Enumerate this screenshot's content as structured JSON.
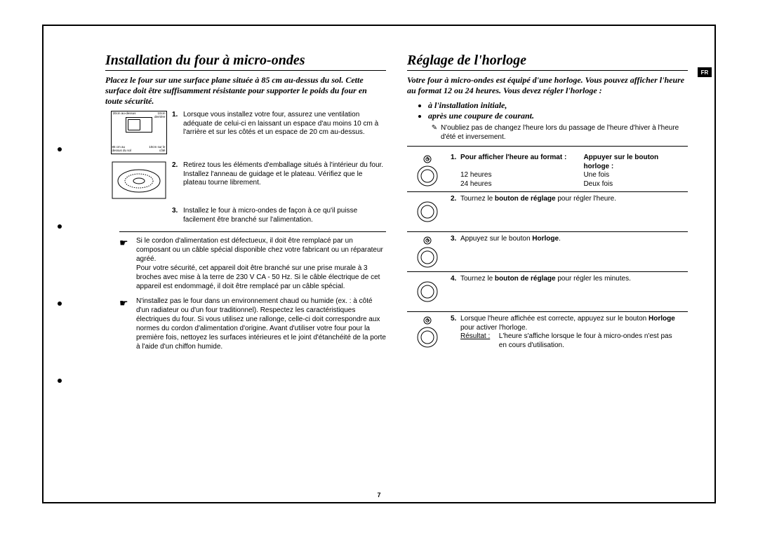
{
  "lang_tab": "FR",
  "page_number": "7",
  "left": {
    "title": "Installation du four à micro-ondes",
    "intro": "Placez le four sur une surface plane située à 85 cm au-dessus du sol. Cette surface doit être suffisamment résistante pour supporter le poids du four en toute sécurité.",
    "diagram_labels": {
      "top": "20cm au-dessus",
      "back": "10cm derrière",
      "height": "85 cm au dessus du sol",
      "side": "10cm sur le côté"
    },
    "steps": [
      {
        "n": "1.",
        "text": "Lorsque vous installez votre four, assurez une ventilation adéquate de celui-ci en laissant un espace d'au moins 10 cm à l'arrière et sur les côtés et un espace de 20 cm au-dessus."
      },
      {
        "n": "2.",
        "text": "Retirez tous les éléments d'emballage situés à l'intérieur du four. Installez l'anneau de guidage et le plateau. Vérifiez que le plateau tourne librement."
      },
      {
        "n": "3.",
        "text": "Installez le four à micro-ondes de façon à ce qu'il puisse facilement être branché sur l'alimentation."
      }
    ],
    "warnings": [
      "Si le cordon d'alimentation est défectueux, il doit être remplacé par un composant ou un câble spécial disponible chez votre fabricant ou un réparateur agréé.\nPour votre sécurité, cet appareil doit être branché sur une prise murale à 3 broches avec mise à la terre de 230 V CA - 50 Hz. Si le câble électrique de cet appareil est endommagé, il doit être remplacé par un câble spécial.",
      "N'installez pas le four dans un environnement chaud ou humide (ex. : à côté d'un radiateur ou d'un four traditionnel). Respectez les caractéristiques électriques du four. Si vous utilisez une rallonge, celle-ci doit correspondre aux normes du cordon d'alimentation d'origine. Avant d'utiliser votre four pour la première fois, nettoyez les surfaces intérieures et le joint d'étanchéité de la porte à l'aide d'un chiffon humide."
    ]
  },
  "right": {
    "title": "Réglage de l'horloge",
    "intro": "Votre four à micro-ondes est équipé d'une horloge. Vous pouvez afficher l'heure au format 12 ou 24 heures. Vous devez régler l'horloge :",
    "bullets": [
      "à l'installation initiale,",
      "après une coupure de courant."
    ],
    "note_icon": "✎",
    "note": "N'oubliez pas de changez l'heure lors du passage de l'heure d'hiver à l'heure d'été et inversement.",
    "steps": [
      {
        "n": "1.",
        "table": {
          "h1": "Pour afficher l'heure au format :",
          "h2": "Appuyer sur le bouton horloge :",
          "r1c1": "12 heures",
          "r1c2": "Une fois",
          "r2c1": "24 heures",
          "r2c2": "Deux fois"
        }
      },
      {
        "n": "2.",
        "html": "Tournez le <b>bouton de réglage</b> pour régler l'heure."
      },
      {
        "n": "3.",
        "html": "Appuyez sur le bouton <b>Horloge</b>."
      },
      {
        "n": "4.",
        "html": "Tournez le <b>bouton de réglage</b> pour régler les minutes."
      },
      {
        "n": "5.",
        "html": "Lorsque l'heure affichée est correcte, appuyez sur le bouton <b>Horloge</b> pour activer l'horloge.",
        "result_label": "Résultat :",
        "result_text": "L'heure s'affiche lorsque le four à micro-ondes n'est pas en cours d'utilisation."
      }
    ]
  }
}
